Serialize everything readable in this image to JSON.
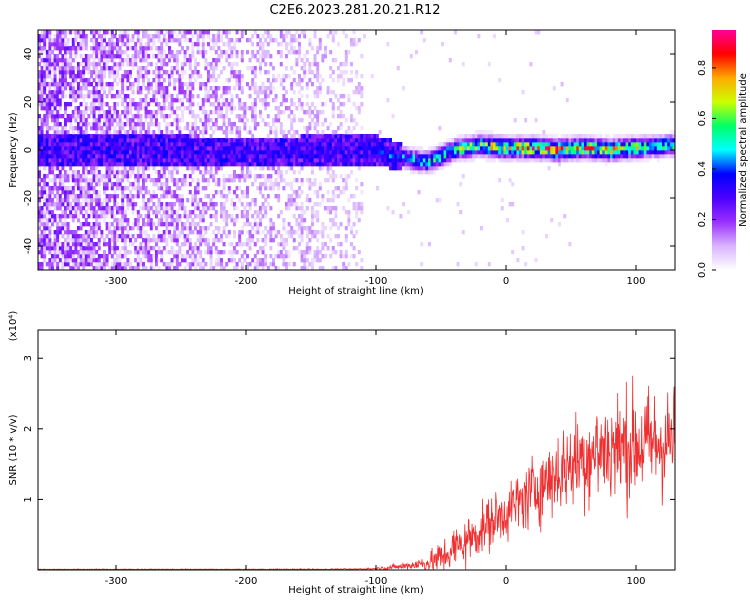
{
  "figure_title": "C2E6.2023.281.20.21.R12",
  "chart_data": [
    {
      "type": "heatmap",
      "xlabel": "Height of straight line (km)",
      "ylabel": "Frequency (Hz)",
      "xlim": [
        -360,
        130
      ],
      "ylim": [
        -50,
        50
      ],
      "xticks": [
        -300,
        -200,
        -100,
        0,
        100
      ],
      "yticks": [
        -40,
        -20,
        0,
        20,
        40
      ],
      "colorbar": {
        "label": "Normalized spectral amplitude",
        "range": [
          0,
          0.95
        ],
        "ticks": [
          0.0,
          0.2,
          0.4,
          0.6,
          0.8
        ],
        "colormap": [
          "#ffffff",
          "#d9b3ff",
          "#9b30ff",
          "#4b00ff",
          "#0000ff",
          "#00ffff",
          "#00ff66",
          "#ccff00",
          "#ffaa00",
          "#ff0000",
          "#ff0099"
        ]
      },
      "description_points": {
        "x": [
          -310,
          -250,
          -200,
          -150,
          -100,
          -80,
          -60,
          -40,
          -20,
          0,
          20,
          40,
          60,
          80,
          100,
          125
        ],
        "center_freq": [
          0,
          0,
          -1,
          0,
          0,
          -3,
          -5,
          0,
          2,
          1,
          1,
          0,
          1,
          0,
          1,
          2
        ],
        "peak_amplitude": [
          0.3,
          0.3,
          0.3,
          0.3,
          0.35,
          0.5,
          0.55,
          0.6,
          0.7,
          0.8,
          0.85,
          0.85,
          0.8,
          0.75,
          0.7,
          0.6
        ]
      },
      "noise_extent_x": [
        -360,
        -110
      ]
    },
    {
      "type": "line",
      "xlabel": "Height of straight line (km)",
      "ylabel": "SNR (10 * v/v)",
      "y_multiplier": "(x10⁴)",
      "xlim": [
        -360,
        130
      ],
      "ylim": [
        0,
        3.4
      ],
      "xticks": [
        -300,
        -200,
        -100,
        0,
        100
      ],
      "yticks": [
        1,
        2,
        3
      ],
      "series": [
        {
          "color": "#f03030",
          "x": [
            -360,
            -300,
            -200,
            -120,
            -100,
            -80,
            -60,
            -50,
            -40,
            -30,
            -20,
            -10,
            0,
            10,
            20,
            30,
            40,
            50,
            60,
            70,
            80,
            90,
            100,
            110,
            120,
            130
          ],
          "mean": [
            0.01,
            0.01,
            0.01,
            0.01,
            0.02,
            0.05,
            0.1,
            0.18,
            0.3,
            0.42,
            0.55,
            0.7,
            0.82,
            0.95,
            1.1,
            1.25,
            1.38,
            1.5,
            1.6,
            1.68,
            1.72,
            1.75,
            1.78,
            1.78,
            1.8,
            1.85
          ],
          "spread": [
            0.005,
            0.005,
            0.005,
            0.01,
            0.02,
            0.05,
            0.12,
            0.25,
            0.3,
            0.35,
            0.35,
            0.38,
            0.4,
            0.45,
            0.5,
            0.55,
            0.6,
            0.65,
            0.7,
            0.75,
            0.8,
            0.8,
            0.8,
            0.8,
            0.8,
            0.75
          ]
        }
      ]
    }
  ]
}
